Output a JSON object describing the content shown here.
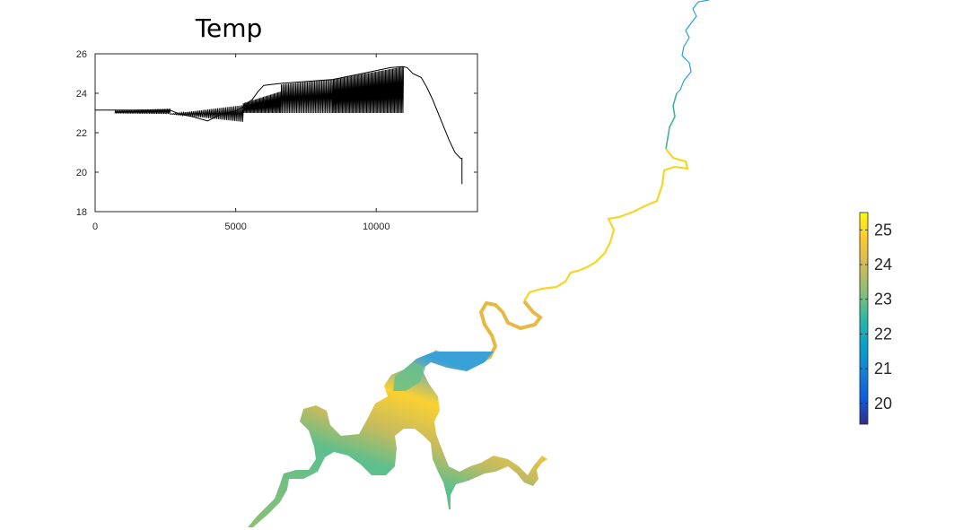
{
  "chart_data": [
    {
      "type": "line",
      "title": "Temp",
      "xlabel": "",
      "ylabel": "",
      "xlim": [
        0,
        13600
      ],
      "ylim": [
        18,
        26
      ],
      "xticks": [
        0,
        5000,
        10000
      ],
      "yticks": [
        18,
        20,
        22,
        24,
        26
      ],
      "grid": false,
      "series": [
        {
          "color": "#000000",
          "band_segments": [
            {
              "x0": 700,
              "x1": 2650,
              "low0": 22.98,
              "low1": 22.95,
              "high0": 23.12,
              "high1": 23.22
            },
            {
              "x0": 2650,
              "x1": 5250,
              "low0": 22.95,
              "low1": 22.55,
              "high0": 22.95,
              "high1": 23.4
            },
            {
              "x0": 5250,
              "x1": 6600,
              "low0": 23.0,
              "low1": 23.0,
              "high0": 23.5,
              "high1": 24.1
            },
            {
              "x0": 6600,
              "x1": 8450,
              "low0": 23.0,
              "low1": 23.0,
              "high0": 24.45,
              "high1": 24.7
            },
            {
              "x0": 8450,
              "x1": 10950,
              "low0": 23.0,
              "low1": 23.0,
              "high0": 24.7,
              "high1": 25.35
            }
          ],
          "band_counts": [
            38,
            45,
            32,
            36,
            58
          ],
          "line": {
            "x": [
              0,
              700,
              2650,
              3000,
              3500,
              4000,
              4500,
              5000,
              5250,
              5600,
              5800,
              6000,
              6600,
              8450,
              9500,
              10500,
              10950,
              11100,
              11300,
              11600,
              11800,
              12000,
              12200,
              12400,
              12600,
              12800,
              13000,
              13050,
              13050
            ],
            "y": [
              23.15,
              23.15,
              23.15,
              22.95,
              22.8,
              22.6,
              22.95,
              23.1,
              23.3,
              23.7,
              24.1,
              24.4,
              24.5,
              24.7,
              25.0,
              25.3,
              25.35,
              25.3,
              25.0,
              24.8,
              24.3,
              23.7,
              23.0,
              22.3,
              21.6,
              21.0,
              20.7,
              20.7,
              19.4
            ]
          }
        }
      ]
    },
    {
      "type": "heatmap",
      "colorbar": {
        "ticks": [
          20,
          21,
          22,
          23,
          24,
          25
        ],
        "range": [
          19.4,
          25.5
        ],
        "colormap": "parula"
      }
    }
  ]
}
